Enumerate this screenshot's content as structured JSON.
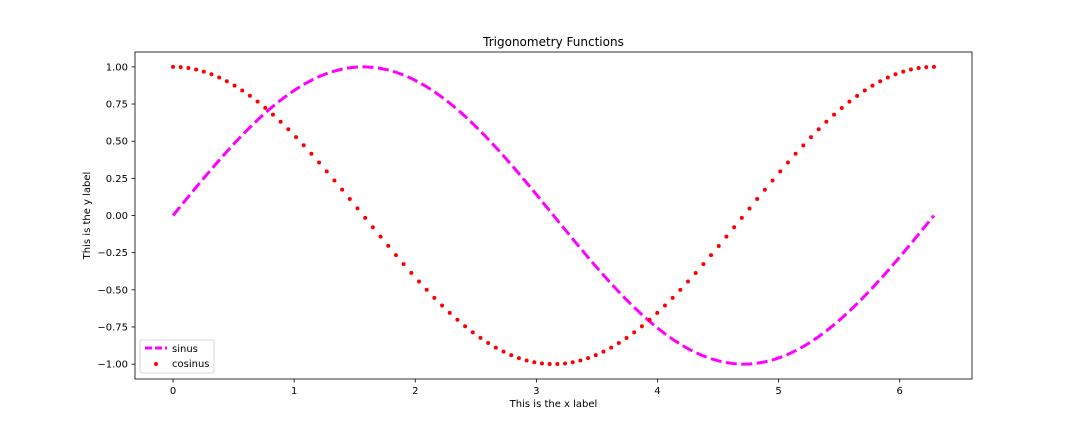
{
  "chart_data": {
    "type": "line",
    "title": "Trigonometry Functions",
    "xlabel": "This is the x label",
    "ylabel": "This is the y label",
    "xlim": [
      -0.314,
      6.597
    ],
    "ylim": [
      -1.1,
      1.1
    ],
    "x_ticks": [
      0,
      1,
      2,
      3,
      4,
      5,
      6
    ],
    "y_ticks": [
      -1.0,
      -0.75,
      -0.5,
      -0.25,
      0.0,
      0.25,
      0.5,
      0.75,
      1.0
    ],
    "x_tick_labels": [
      "0",
      "1",
      "2",
      "3",
      "4",
      "5",
      "6"
    ],
    "y_tick_labels": [
      "−1.00",
      "−0.75",
      "−0.50",
      "−0.25",
      "0.00",
      "0.25",
      "0.50",
      "0.75",
      "1.00"
    ],
    "grid": false,
    "legend_position": "lower-left",
    "x_range": [
      0,
      6.283
    ],
    "samples": 100,
    "series": [
      {
        "name": "sinus",
        "function": "sin",
        "style": "dashed-line",
        "color": "#ff00ff"
      },
      {
        "name": "cosinus",
        "function": "cos",
        "style": "dotted-markers",
        "color": "#ff0000"
      }
    ]
  }
}
